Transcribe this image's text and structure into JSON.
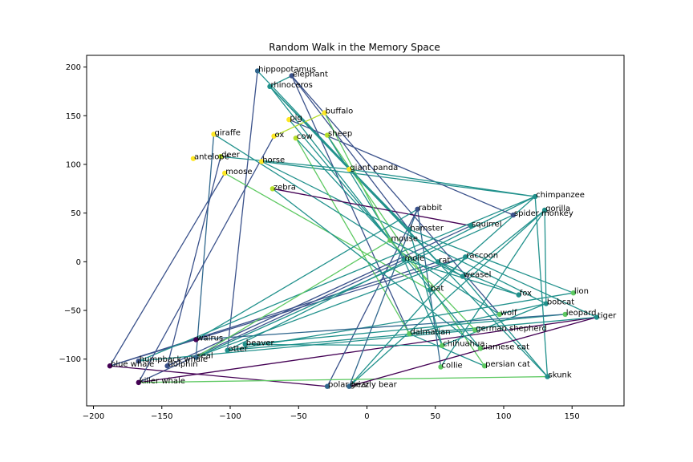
{
  "chart_data": {
    "type": "scatter",
    "title": "Random Walk in the Memory Space",
    "xlabel": "",
    "ylabel": "",
    "xlim": [
      -205,
      188
    ],
    "ylim": [
      -148,
      212
    ],
    "xticks": [
      -200,
      -150,
      -100,
      -50,
      0,
      50,
      100,
      150
    ],
    "yticks": [
      -100,
      -50,
      0,
      50,
      100,
      150,
      200
    ],
    "grid": false,
    "points": [
      {
        "name": "hippopotamus",
        "x": -80,
        "y": 196,
        "color": "#31688e"
      },
      {
        "name": "elephant",
        "x": -55,
        "y": 191,
        "color": "#3b528b"
      },
      {
        "name": "rhinoceros",
        "x": -71,
        "y": 180,
        "color": "#21918c"
      },
      {
        "name": "buffalo",
        "x": -31,
        "y": 153,
        "color": "#fde725"
      },
      {
        "name": "pig",
        "x": -57,
        "y": 146,
        "color": "#fde725"
      },
      {
        "name": "sheep",
        "x": -29,
        "y": 130,
        "color": "#b5de2b"
      },
      {
        "name": "ox",
        "x": -68,
        "y": 129,
        "color": "#fde725"
      },
      {
        "name": "cow",
        "x": -52,
        "y": 127,
        "color": "#b5de2b"
      },
      {
        "name": "giraffe",
        "x": -112,
        "y": 131,
        "color": "#fde725"
      },
      {
        "name": "antelope",
        "x": -127,
        "y": 106,
        "color": "#fde725"
      },
      {
        "name": "deer",
        "x": -107,
        "y": 108,
        "color": "#b5de2b"
      },
      {
        "name": "horse",
        "x": -77,
        "y": 103,
        "color": "#fde725"
      },
      {
        "name": "moose",
        "x": -104,
        "y": 91,
        "color": "#fde725"
      },
      {
        "name": "giant panda",
        "x": -13,
        "y": 95,
        "color": "#fde725"
      },
      {
        "name": "zebra",
        "x": -69,
        "y": 75,
        "color": "#b5de2b"
      },
      {
        "name": "chimpanzee",
        "x": 123,
        "y": 67,
        "color": "#21918c"
      },
      {
        "name": "rabbit",
        "x": 37,
        "y": 54,
        "color": "#3b528b"
      },
      {
        "name": "gorilla",
        "x": 130,
        "y": 53,
        "color": "#21918c"
      },
      {
        "name": "spider monkey",
        "x": 107,
        "y": 48,
        "color": "#3b528b"
      },
      {
        "name": "squirrel",
        "x": 76,
        "y": 37,
        "color": "#21918c"
      },
      {
        "name": "hamster",
        "x": 31,
        "y": 33,
        "color": "#21918c"
      },
      {
        "name": "mouse",
        "x": 17,
        "y": 22,
        "color": "#5ec962"
      },
      {
        "name": "raccoon",
        "x": 72,
        "y": 5,
        "color": "#21918c"
      },
      {
        "name": "mole",
        "x": 27,
        "y": 2,
        "color": "#21918c"
      },
      {
        "name": "rat",
        "x": 52,
        "y": 0,
        "color": "#21918c"
      },
      {
        "name": "weasel",
        "x": 70,
        "y": -15,
        "color": "#21918c"
      },
      {
        "name": "bat",
        "x": 46,
        "y": -29,
        "color": "#21918c"
      },
      {
        "name": "lion",
        "x": 151,
        "y": -32,
        "color": "#5ec962"
      },
      {
        "name": "fox",
        "x": 111,
        "y": -34,
        "color": "#21918c"
      },
      {
        "name": "bobcat",
        "x": 131,
        "y": -43,
        "color": "#21918c"
      },
      {
        "name": "leopard",
        "x": 145,
        "y": -54,
        "color": "#5ec962"
      },
      {
        "name": "tiger",
        "x": 168,
        "y": -57,
        "color": "#21918c"
      },
      {
        "name": "wolf",
        "x": 97,
        "y": -54,
        "color": "#5ec962"
      },
      {
        "name": "german shepherd",
        "x": 79,
        "y": -70,
        "color": "#5ec962"
      },
      {
        "name": "dalmatian",
        "x": 31,
        "y": -74,
        "color": "#5ec962"
      },
      {
        "name": "chihuahua",
        "x": 55,
        "y": -86,
        "color": "#5ec962"
      },
      {
        "name": "siamese cat",
        "x": 83,
        "y": -89,
        "color": "#5ec962"
      },
      {
        "name": "persian cat",
        "x": 86,
        "y": -107,
        "color": "#5ec962"
      },
      {
        "name": "collie",
        "x": 54,
        "y": -108,
        "color": "#5ec962"
      },
      {
        "name": "skunk",
        "x": 132,
        "y": -118,
        "color": "#21918c"
      },
      {
        "name": "walrus",
        "x": -125,
        "y": -80,
        "color": "#440154"
      },
      {
        "name": "beaver",
        "x": -89,
        "y": -85,
        "color": "#21918c"
      },
      {
        "name": "otter",
        "x": -102,
        "y": -91,
        "color": "#21918c"
      },
      {
        "name": "seal",
        "x": -125,
        "y": -98,
        "color": "#31688e"
      },
      {
        "name": "humpback whale",
        "x": -167,
        "y": -102,
        "color": "#3b528b"
      },
      {
        "name": "dolphin",
        "x": -146,
        "y": -107,
        "color": "#3b528b"
      },
      {
        "name": "blue whale",
        "x": -188,
        "y": -107,
        "color": "#440154"
      },
      {
        "name": "killer whale",
        "x": -167,
        "y": -124,
        "color": "#440154"
      },
      {
        "name": "polar bear",
        "x": -29,
        "y": -128,
        "color": "#31688e"
      },
      {
        "name": "grizzly bear",
        "x": -13,
        "y": -128,
        "color": "#31688e"
      }
    ],
    "edges": [
      [
        "rhinoceros",
        "elephant",
        "#21918c"
      ],
      [
        "elephant",
        "dalmatian",
        "#3b528b"
      ],
      [
        "dalmatian",
        "persian cat",
        "#21918c"
      ],
      [
        "persian cat",
        "sheep",
        "#5ec962"
      ],
      [
        "sheep",
        "mole",
        "#21918c"
      ],
      [
        "mole",
        "killer whale",
        "#3b528b"
      ],
      [
        "killer whale",
        "tiger",
        "#440154"
      ],
      [
        "tiger",
        "otter",
        "#21918c"
      ],
      [
        "otter",
        "hippopotamus",
        "#3b528b"
      ],
      [
        "hippopotamus",
        "rat",
        "#21918c"
      ],
      [
        "rat",
        "blue whale",
        "#3b528b"
      ],
      [
        "blue whale",
        "raccoon",
        "#3b528b"
      ],
      [
        "raccoon",
        "grizzly bear",
        "#21918c"
      ],
      [
        "grizzly bear",
        "gorilla",
        "#21918c"
      ],
      [
        "gorilla",
        "collie",
        "#21918c"
      ],
      [
        "collie",
        "rabbit",
        "#31688e"
      ],
      [
        "rabbit",
        "polar bear",
        "#3b528b"
      ],
      [
        "polar bear",
        "blue whale",
        "#440154"
      ],
      [
        "blue whale",
        "moose",
        "#3b528b"
      ],
      [
        "moose",
        "bat",
        "#5ec962"
      ],
      [
        "bat",
        "chimpanzee",
        "#21918c"
      ],
      [
        "chimpanzee",
        "horse",
        "#21918c"
      ],
      [
        "horse",
        "bobcat",
        "#21918c"
      ],
      [
        "bobcat",
        "dalmatian",
        "#21918c"
      ],
      [
        "dalmatian",
        "cow",
        "#5ec962"
      ],
      [
        "cow",
        "mouse",
        "#21918c"
      ],
      [
        "mouse",
        "rhinoceros",
        "#21918c"
      ],
      [
        "rhinoceros",
        "skunk",
        "#21918c"
      ],
      [
        "skunk",
        "chimpanzee",
        "#21918c"
      ],
      [
        "chimpanzee",
        "otter",
        "#21918c"
      ],
      [
        "otter",
        "lion",
        "#21918c"
      ],
      [
        "lion",
        "hamster",
        "#21918c"
      ],
      [
        "hamster",
        "elephant",
        "#3b528b"
      ],
      [
        "elephant",
        "wolf",
        "#3b528b"
      ],
      [
        "wolf",
        "giraffe",
        "#21918c"
      ],
      [
        "giraffe",
        "seal",
        "#31688e"
      ],
      [
        "seal",
        "spider monkey",
        "#21918c"
      ],
      [
        "spider monkey",
        "pig",
        "#3b528b"
      ],
      [
        "pig",
        "siamese cat",
        "#21918c"
      ],
      [
        "siamese cat",
        "zebra",
        "#21918c"
      ],
      [
        "zebra",
        "squirrel",
        "#440154"
      ],
      [
        "squirrel",
        "dolphin",
        "#3b528b"
      ],
      [
        "dolphin",
        "deer",
        "#3b528b"
      ],
      [
        "deer",
        "giant panda",
        "#21918c"
      ],
      [
        "giant panda",
        "chimpanzee",
        "#21918c"
      ],
      [
        "chimpanzee",
        "humpback whale",
        "#21918c"
      ],
      [
        "humpback whale",
        "german shepherd",
        "#21918c"
      ],
      [
        "german shepherd",
        "mouse",
        "#5ec962"
      ],
      [
        "mouse",
        "buffalo",
        "#5ec962"
      ],
      [
        "buffalo",
        "ox",
        "#b5de2b"
      ],
      [
        "ox",
        "killer whale",
        "#3b528b"
      ],
      [
        "killer whale",
        "skunk",
        "#5ec962"
      ],
      [
        "skunk",
        "weasel",
        "#21918c"
      ],
      [
        "weasel",
        "rat",
        "#21918c"
      ],
      [
        "rat",
        "fox",
        "#21918c"
      ],
      [
        "fox",
        "mole",
        "#21918c"
      ],
      [
        "mole",
        "chihuahua",
        "#21918c"
      ],
      [
        "chihuahua",
        "beaver",
        "#21918c"
      ],
      [
        "beaver",
        "leopard",
        "#21918c"
      ],
      [
        "leopard",
        "walrus",
        "#31688e"
      ],
      [
        "walrus",
        "rabbit",
        "#21918c"
      ],
      [
        "rabbit",
        "grizzly bear",
        "#31688e"
      ],
      [
        "grizzly bear",
        "tiger",
        "#440154"
      ],
      [
        "tiger",
        "raccoon",
        "#21918c"
      ],
      [
        "raccoon",
        "seal",
        "#21918c"
      ],
      [
        "seal",
        "mouse",
        "#5ec962"
      ],
      [
        "mouse",
        "weasel",
        "#21918c"
      ],
      [
        "weasel",
        "gorilla",
        "#21918c"
      ],
      [
        "gorilla",
        "bobcat",
        "#21918c"
      ],
      [
        "bobcat",
        "chihuahua",
        "#21918c"
      ],
      [
        "chihuahua",
        "hamster",
        "#21918c"
      ],
      [
        "hamster",
        "rhinoceros",
        "#21918c"
      ]
    ]
  }
}
